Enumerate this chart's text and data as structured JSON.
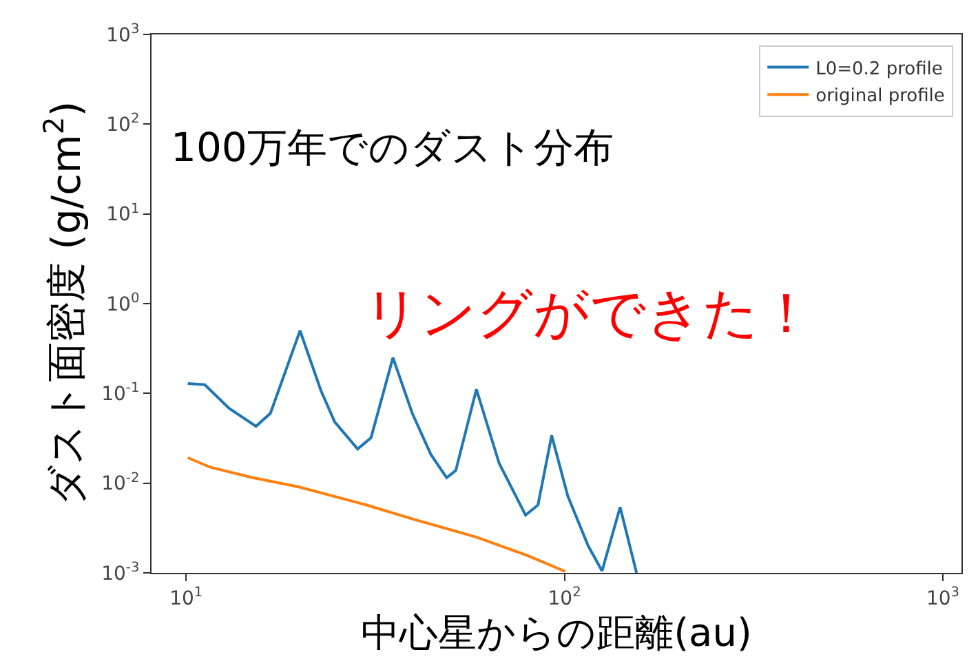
{
  "chart_data": {
    "type": "line",
    "xlabel": "中心星からの距離(au)",
    "ylabel": "ダスト面密度 (g/cm$^{2}$)",
    "annotations": [
      "100万年でのダスト分布",
      "リングができた！"
    ],
    "log": "xy",
    "xlim": [
      8.1,
      1120
    ],
    "xticks": [
      {
        "value": 10,
        "label": "10$^{1}$"
      },
      {
        "value": 100,
        "label": "10$^{2}$"
      },
      {
        "value": 1000,
        "label": "10$^{3}$"
      }
    ],
    "ylim": [
      0.001,
      1000
    ],
    "yticks": [
      {
        "value": 0.001,
        "label": "10$^{-3}$"
      },
      {
        "value": 0.01,
        "label": "10$^{-2}$"
      },
      {
        "value": 0.1,
        "label": "10$^{-1}$"
      },
      {
        "value": 1,
        "label": "10$^{0}$"
      },
      {
        "value": 10,
        "label": "10$^{1}$"
      },
      {
        "value": 100,
        "label": "10$^{2}$"
      },
      {
        "value": 1000,
        "label": "10$^{3}$"
      }
    ],
    "legend": "top right",
    "series": [
      {
        "name": "L0=0.2 profile",
        "color": "#1f77b4",
        "x": [
          10.1,
          11.2,
          13.0,
          15.3,
          16.7,
          20.0,
          22.7,
          24.7,
          28.4,
          30.8,
          35.2,
          39.6,
          44.3,
          48.8,
          51.6,
          58.5,
          67.2,
          78.9,
          85.1,
          92.5,
          102,
          115.5,
          125.7,
          140.3,
          155
        ],
        "values": [
          0.129,
          0.125,
          0.068,
          0.043,
          0.06,
          0.5,
          0.108,
          0.048,
          0.024,
          0.032,
          0.25,
          0.06,
          0.021,
          0.0115,
          0.0138,
          0.111,
          0.0166,
          0.0044,
          0.0057,
          0.034,
          0.0072,
          0.002,
          0.00105,
          0.0054,
          0.001
        ]
      },
      {
        "name": "original profile",
        "color": "#ff7f0e",
        "x": [
          10.1,
          11.6,
          15.0,
          19.8,
          30.0,
          39.6,
          58.5,
          79.4,
          100.4
        ],
        "values": [
          0.0192,
          0.015,
          0.0115,
          0.0091,
          0.0057,
          0.004,
          0.0025,
          0.00157,
          0.00104
        ]
      }
    ]
  }
}
